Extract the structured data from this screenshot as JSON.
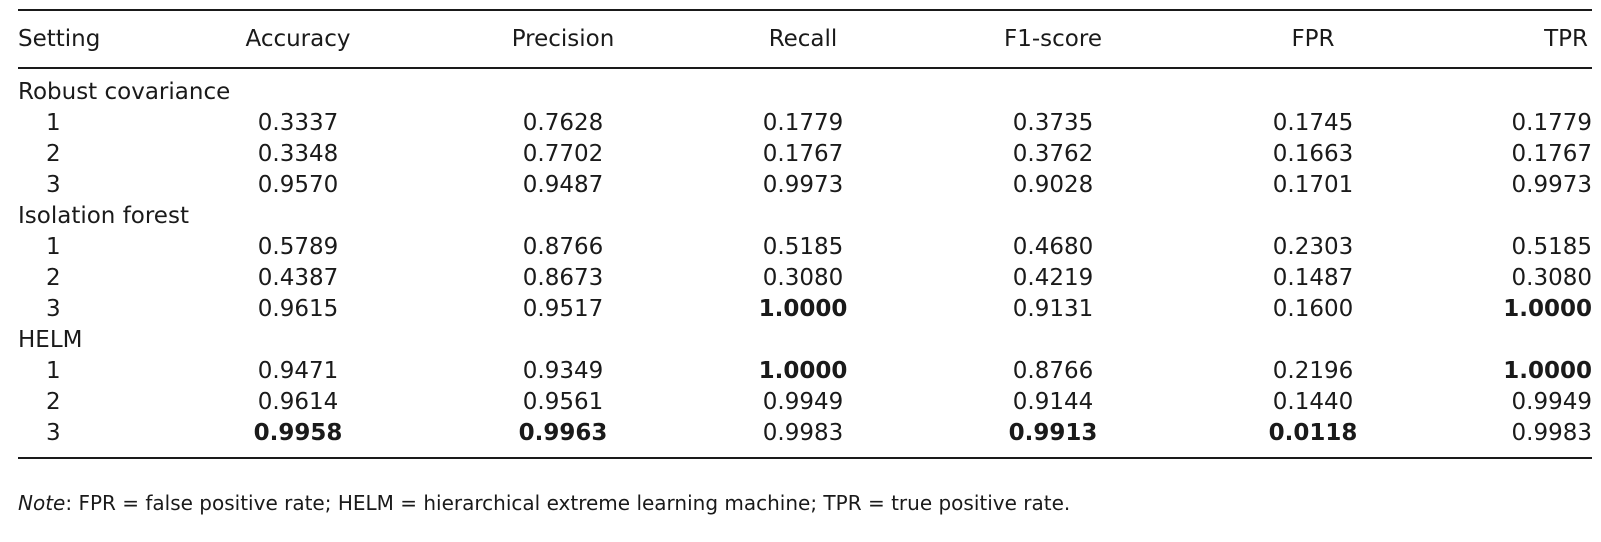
{
  "columns": [
    "Setting",
    "Accuracy",
    "Precision",
    "Recall",
    "F1-score",
    "FPR",
    "TPR"
  ],
  "groups": [
    {
      "name": "Robust covariance",
      "rows": [
        {
          "setting": "1",
          "values": [
            "0.3337",
            "0.7628",
            "0.1779",
            "0.3735",
            "0.1745",
            "0.1779"
          ],
          "bold": [
            false,
            false,
            false,
            false,
            false,
            false
          ]
        },
        {
          "setting": "2",
          "values": [
            "0.3348",
            "0.7702",
            "0.1767",
            "0.3762",
            "0.1663",
            "0.1767"
          ],
          "bold": [
            false,
            false,
            false,
            false,
            false,
            false
          ]
        },
        {
          "setting": "3",
          "values": [
            "0.9570",
            "0.9487",
            "0.9973",
            "0.9028",
            "0.1701",
            "0.9973"
          ],
          "bold": [
            false,
            false,
            false,
            false,
            false,
            false
          ]
        }
      ]
    },
    {
      "name": "Isolation forest",
      "rows": [
        {
          "setting": "1",
          "values": [
            "0.5789",
            "0.8766",
            "0.5185",
            "0.4680",
            "0.2303",
            "0.5185"
          ],
          "bold": [
            false,
            false,
            false,
            false,
            false,
            false
          ]
        },
        {
          "setting": "2",
          "values": [
            "0.4387",
            "0.8673",
            "0.3080",
            "0.4219",
            "0.1487",
            "0.3080"
          ],
          "bold": [
            false,
            false,
            false,
            false,
            false,
            false
          ]
        },
        {
          "setting": "3",
          "values": [
            "0.9615",
            "0.9517",
            "1.0000",
            "0.9131",
            "0.1600",
            "1.0000"
          ],
          "bold": [
            false,
            false,
            true,
            false,
            false,
            true
          ]
        }
      ]
    },
    {
      "name": "HELM",
      "rows": [
        {
          "setting": "1",
          "values": [
            "0.9471",
            "0.9349",
            "1.0000",
            "0.8766",
            "0.2196",
            "1.0000"
          ],
          "bold": [
            false,
            false,
            true,
            false,
            false,
            true
          ]
        },
        {
          "setting": "2",
          "values": [
            "0.9614",
            "0.9561",
            "0.9949",
            "0.9144",
            "0.1440",
            "0.9949"
          ],
          "bold": [
            false,
            false,
            false,
            false,
            false,
            false
          ]
        },
        {
          "setting": "3",
          "values": [
            "0.9958",
            "0.9963",
            "0.9983",
            "0.9913",
            "0.0118",
            "0.9983"
          ],
          "bold": [
            true,
            true,
            false,
            true,
            true,
            false
          ]
        }
      ]
    }
  ],
  "note": {
    "label": "Note",
    "text": ": FPR = false positive rate; HELM = hierarchical extreme learning machine; TPR = true positive rate."
  }
}
